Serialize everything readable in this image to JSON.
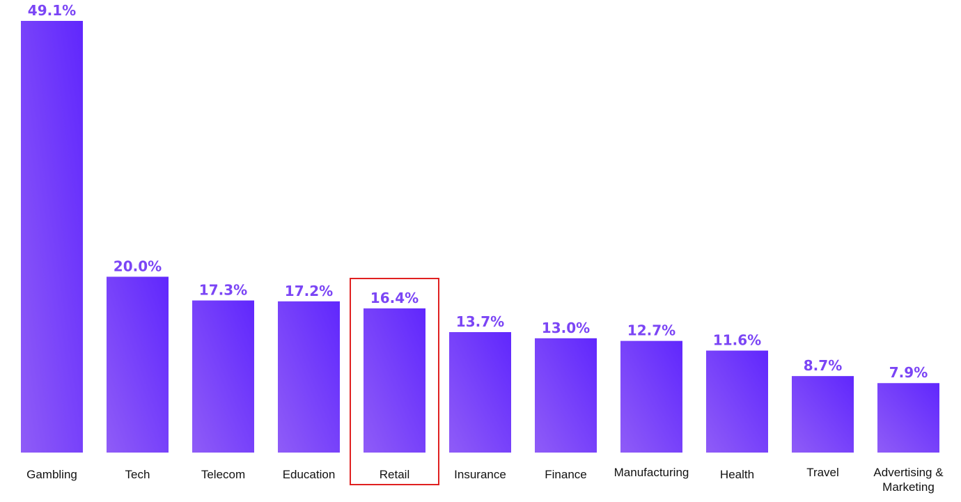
{
  "chart_data": {
    "type": "bar",
    "categories": [
      "Gambling",
      "Tech",
      "Telecom",
      "Education",
      "Retail",
      "Insurance",
      "Finance",
      "Manufacturing",
      "Health",
      "Travel",
      "Advertising & Marketing"
    ],
    "values": [
      49.1,
      20.0,
      17.3,
      17.2,
      16.4,
      13.7,
      13.0,
      12.7,
      11.6,
      8.7,
      7.9
    ],
    "value_labels": [
      "49.1%",
      "20.0%",
      "17.3%",
      "17.2%",
      "16.4%",
      "13.7%",
      "13.0%",
      "12.7%",
      "11.6%",
      "8.7%",
      "7.9%"
    ],
    "unit": "%",
    "highlighted_category": "Retail",
    "grid": false,
    "legend": "none"
  },
  "colors": {
    "bar_start": "#8f5cf7",
    "bar_end": "#6027fd",
    "value_label": "#7b45f5",
    "highlight_box": "#e02020",
    "category_label": "#111111"
  }
}
